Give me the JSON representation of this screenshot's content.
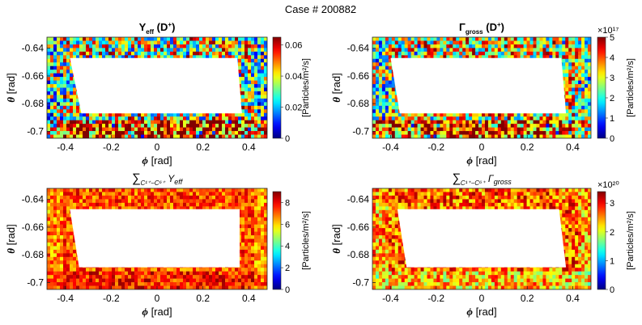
{
  "figure_title": "Case # 200882",
  "chart_data": [
    {
      "type": "heatmap",
      "id": "p1",
      "title_main": "Y",
      "title_sub": "eff",
      "title_suffix": "  (D",
      "title_sup": "+",
      "title_end": ")",
      "xlabel_sym": "ϕ",
      "xlabel_unit": "[rad]",
      "ylabel_sym": "θ",
      "ylabel_unit": "[rad]",
      "xlim": [
        -0.48,
        0.48
      ],
      "ylim": [
        -0.705,
        -0.632
      ],
      "xticks": [
        -0.4,
        -0.2,
        0,
        0.2,
        0.4
      ],
      "xtick_labels": [
        "-0.4",
        "-0.2",
        "0",
        "0.2",
        "0.4"
      ],
      "yticks": [
        -0.64,
        -0.66,
        -0.68,
        -0.7
      ],
      "ytick_labels": [
        "-0.64",
        "-0.66",
        "-0.68",
        "-0.7"
      ],
      "colorbar": {
        "min": 0,
        "max": 0.065,
        "ticks": [
          0,
          0.02,
          0.04,
          0.06
        ],
        "tick_labels": [
          "0",
          "0.02",
          "0.04",
          "0.06"
        ],
        "label": "[Particles/m²/s]",
        "exponent": ""
      },
      "field_mean": 0.58,
      "field_spread": 0.42,
      "bottom_boost": 0.25,
      "hole_polygon": [
        [
          -0.38,
          -0.647
        ],
        [
          0.35,
          -0.647
        ],
        [
          0.37,
          -0.687
        ],
        [
          -0.33,
          -0.687
        ]
      ]
    },
    {
      "type": "heatmap",
      "id": "p2",
      "title_main": "Γ",
      "title_sub": "gross",
      "title_suffix": "  (D",
      "title_sup": "+",
      "title_end": ")",
      "xlabel_sym": "ϕ",
      "xlabel_unit": "[rad]",
      "ylabel_sym": "θ",
      "ylabel_unit": "[rad]",
      "xlim": [
        -0.48,
        0.48
      ],
      "ylim": [
        -0.705,
        -0.632
      ],
      "xticks": [
        -0.4,
        -0.2,
        0,
        0.2,
        0.4
      ],
      "xtick_labels": [
        "-0.4",
        "-0.2",
        "0",
        "0.2",
        "0.4"
      ],
      "yticks": [
        -0.64,
        -0.66,
        -0.68,
        -0.7
      ],
      "ytick_labels": [
        "-0.64",
        "-0.66",
        "-0.68",
        "-0.7"
      ],
      "colorbar": {
        "min": 0,
        "max": 5,
        "ticks": [
          0,
          1,
          2,
          3,
          4,
          5
        ],
        "tick_labels": [
          "0",
          "1",
          "2",
          "3",
          "4",
          "5"
        ],
        "label": "[Particles/m²/s]",
        "exponent": "×10¹⁷"
      },
      "field_mean": 0.62,
      "field_spread": 0.38,
      "bottom_boost": 0.15,
      "hole_polygon": [
        [
          -0.4,
          -0.647
        ],
        [
          0.35,
          -0.647
        ],
        [
          0.37,
          -0.687
        ],
        [
          -0.36,
          -0.687
        ]
      ]
    },
    {
      "type": "heatmap",
      "id": "p3",
      "title_main": "∑",
      "title_sub": "C¹⁺−C⁶⁺",
      "title_suffix": " Y",
      "title_sup": "",
      "title_end": "eff",
      "xlabel_sym": "ϕ",
      "xlabel_unit": "[rad]",
      "ylabel_sym": "θ",
      "ylabel_unit": "[rad]",
      "xlim": [
        -0.48,
        0.48
      ],
      "ylim": [
        -0.705,
        -0.632
      ],
      "xticks": [
        -0.4,
        -0.2,
        0,
        0.2,
        0.4
      ],
      "xtick_labels": [
        "-0.4",
        "-0.2",
        "0",
        "0.2",
        "0.4"
      ],
      "yticks": [
        -0.64,
        -0.66,
        -0.68,
        -0.7
      ],
      "ytick_labels": [
        "-0.64",
        "-0.66",
        "-0.68",
        "-0.7"
      ],
      "colorbar": {
        "min": 0,
        "max": 9,
        "ticks": [
          0,
          2,
          4,
          6,
          8
        ],
        "tick_labels": [
          "0",
          "2",
          "4",
          "6",
          "8"
        ],
        "label": "[Particles/m²/s]",
        "exponent": ""
      },
      "field_mean": 0.8,
      "field_spread": 0.14,
      "bottom_boost": 0.05,
      "hole_polygon": [
        [
          -0.38,
          -0.647
        ],
        [
          0.36,
          -0.647
        ],
        [
          0.36,
          -0.689
        ],
        [
          -0.34,
          -0.689
        ]
      ]
    },
    {
      "type": "heatmap",
      "id": "p4",
      "title_main": "∑",
      "title_sub": "C¹⁺−C⁶⁺",
      "title_suffix": " Γ",
      "title_sup": "",
      "title_end": "gross",
      "xlabel_sym": "ϕ",
      "xlabel_unit": "[rad]",
      "ylabel_sym": "θ",
      "ylabel_unit": "[rad]",
      "xlim": [
        -0.48,
        0.48
      ],
      "ylim": [
        -0.705,
        -0.632
      ],
      "xticks": [
        -0.4,
        -0.2,
        0,
        0.2,
        0.4
      ],
      "xtick_labels": [
        "-0.4",
        "-0.2",
        "0",
        "0.2",
        "0.4"
      ],
      "yticks": [
        -0.64,
        -0.66,
        -0.68,
        -0.7
      ],
      "ytick_labels": [
        "-0.64",
        "-0.66",
        "-0.68",
        "-0.7"
      ],
      "colorbar": {
        "min": 0,
        "max": 3.4,
        "ticks": [
          0,
          1,
          2,
          3
        ],
        "tick_labels": [
          "0",
          "1",
          "2",
          "3"
        ],
        "label": "[Particles/m²/s]",
        "exponent": "×10²⁰"
      },
      "field_mean": 0.78,
      "field_spread": 0.2,
      "bottom_boost": -0.1,
      "hole_polygon": [
        [
          -0.37,
          -0.647
        ],
        [
          0.34,
          -0.647
        ],
        [
          0.37,
          -0.689
        ],
        [
          -0.33,
          -0.689
        ]
      ]
    }
  ]
}
